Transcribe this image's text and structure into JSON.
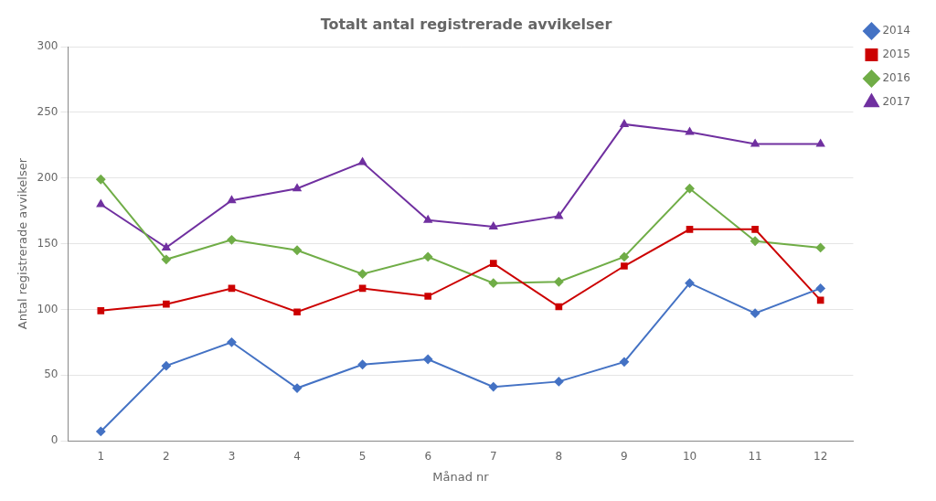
{
  "chart_data": {
    "type": "line",
    "title": "Totalt antal registrerade avvikelser",
    "x_label": "Månad nr",
    "y_label": "Antal registrerade avvikelser",
    "x": [
      1,
      2,
      3,
      4,
      5,
      6,
      7,
      8,
      9,
      10,
      11,
      12
    ],
    "series": [
      {
        "name": "2014",
        "color": "#4472C4",
        "marker": "diamond",
        "values": [
          7,
          57,
          75,
          40,
          58,
          62,
          41,
          45,
          60,
          120,
          97,
          116
        ]
      },
      {
        "name": "2015",
        "color": "#CC0000",
        "marker": "square",
        "values": [
          99,
          104,
          116,
          98,
          116,
          110,
          135,
          102,
          133,
          161,
          161,
          107
        ]
      },
      {
        "name": "2016",
        "color": "#70AD47",
        "marker": "diamond",
        "values": [
          199,
          138,
          153,
          145,
          127,
          140,
          120,
          121,
          140,
          192,
          152,
          147
        ]
      },
      {
        "name": "2017",
        "color": "#7030A0",
        "marker": "triangle",
        "values": [
          180,
          147,
          183,
          192,
          212,
          168,
          163,
          171,
          241,
          235,
          226,
          226
        ]
      }
    ],
    "xlim": [
      0.5,
      12.5
    ],
    "xticks": [
      1,
      2,
      3,
      4,
      5,
      6,
      7,
      8,
      9,
      10,
      11,
      12
    ],
    "ylim": [
      0,
      300
    ],
    "yticks": [
      0,
      50,
      100,
      150,
      200,
      250,
      300
    ],
    "grid": "y",
    "legend": "right"
  }
}
